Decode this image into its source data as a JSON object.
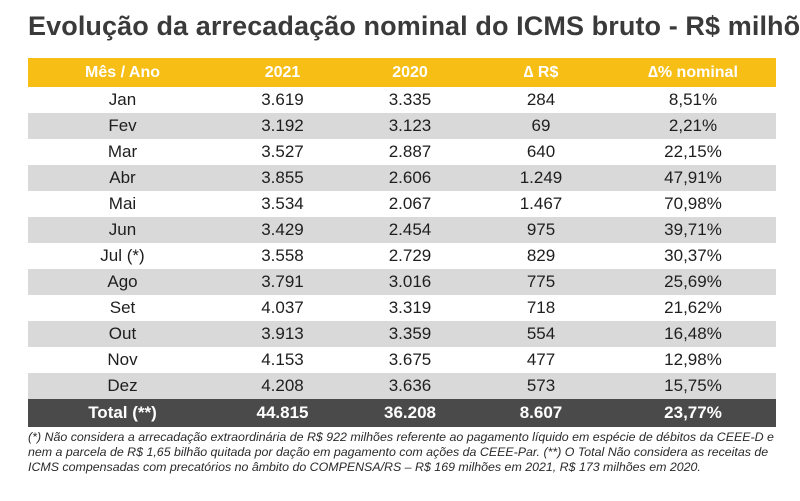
{
  "title": "Evolução da arrecadação nominal do ICMS bruto - R$ milhões",
  "table": {
    "headers": [
      "Mês / Ano",
      "2021",
      "2020",
      "∆ R$",
      "∆% nominal"
    ],
    "rows": [
      [
        "Jan",
        "3.619",
        "3.335",
        "284",
        "8,51%"
      ],
      [
        "Fev",
        "3.192",
        "3.123",
        "69",
        "2,21%"
      ],
      [
        "Mar",
        "3.527",
        "2.887",
        "640",
        "22,15%"
      ],
      [
        "Abr",
        "3.855",
        "2.606",
        "1.249",
        "47,91%"
      ],
      [
        "Mai",
        "3.534",
        "2.067",
        "1.467",
        "70,98%"
      ],
      [
        "Jun",
        "3.429",
        "2.454",
        "975",
        "39,71%"
      ],
      [
        "Jul (*)",
        "3.558",
        "2.729",
        "829",
        "30,37%"
      ],
      [
        "Ago",
        "3.791",
        "3.016",
        "775",
        "25,69%"
      ],
      [
        "Set",
        "4.037",
        "3.319",
        "718",
        "21,62%"
      ],
      [
        "Out",
        "3.913",
        "3.359",
        "554",
        "16,48%"
      ],
      [
        "Nov",
        "4.153",
        "3.675",
        "477",
        "12,98%"
      ],
      [
        "Dez",
        "4.208",
        "3.636",
        "573",
        "15,75%"
      ]
    ],
    "total": [
      "Total (**)",
      "44.815",
      "36.208",
      "8.607",
      "23,77%"
    ]
  },
  "footnote": [
    "(*) Não considera a arrecadação extraordinária de R$ 922 milhões referente ao pagamento líquido em espécie de débitos da CEEE-D e",
    "nem a parcela de R$ 1,65 bilhão quitada por dação em pagamento com ações da CEEE-Par. (**) O Total Não considera as receitas de",
    "ICMS compensadas com precatórios no âmbito do COMPENSA/RS – R$ 169 milhões em 2021, R$ 173 milhões em 2020."
  ],
  "colors": {
    "header_bg": "#f7be16",
    "stripe_bg": "#d9d9d9",
    "total_bg": "#4a4a4a"
  }
}
